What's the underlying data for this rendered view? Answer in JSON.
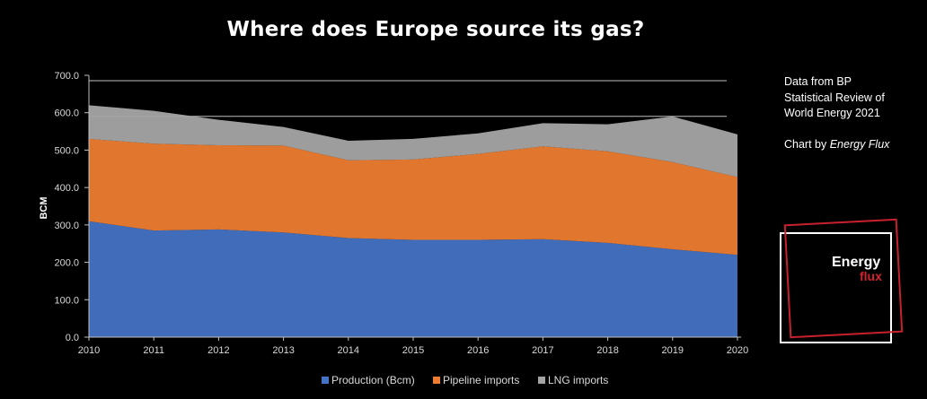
{
  "title": "Where does Europe source its gas?",
  "note": {
    "line1": "Data from BP Statistical Review of World Energy 2021",
    "line2_prefix": "Chart by ",
    "line2_em": "Energy Flux"
  },
  "logo": {
    "word1": "Energy",
    "word2": "flux"
  },
  "colors": {
    "production": "#4472C4",
    "pipeline": "#ED7D31",
    "lng": "#A5A5A5"
  },
  "chart_data": {
    "type": "area",
    "stacked": true,
    "title": "Where does Europe source its gas?",
    "ylabel": "BCM",
    "xlabel": "",
    "ylim": [
      0,
      700
    ],
    "yticks": [
      "0.0",
      "100.0",
      "200.0",
      "300.0",
      "400.0",
      "500.0",
      "600.0",
      "700.0"
    ],
    "x": [
      "2010",
      "2011",
      "2012",
      "2013",
      "2014",
      "2015",
      "2016",
      "2017",
      "2018",
      "2019",
      "2020"
    ],
    "legend_position": "bottom",
    "series": [
      {
        "name": "Production (Bcm)",
        "values": [
          310,
          285,
          288,
          280,
          265,
          260,
          260,
          262,
          252,
          235,
          220
        ]
      },
      {
        "name": "Pipeline imports",
        "values": [
          220,
          232,
          225,
          232,
          208,
          215,
          230,
          248,
          245,
          233,
          208
        ]
      },
      {
        "name": "LNG imports",
        "values": [
          90,
          88,
          68,
          50,
          52,
          55,
          55,
          62,
          72,
          122,
          114
        ]
      }
    ]
  }
}
